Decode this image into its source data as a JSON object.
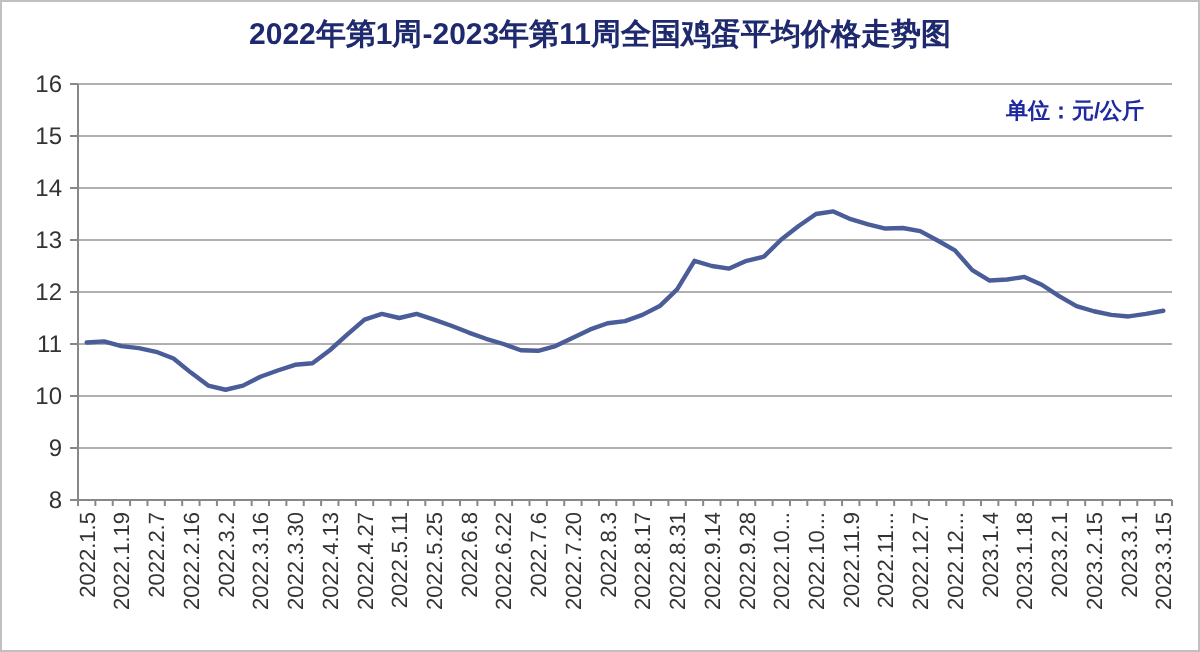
{
  "chart_data": {
    "type": "line",
    "title": "2022年第1周-2023年第11周全国鸡蛋平均价格走势图",
    "annotations": [
      "单位：元/公斤"
    ],
    "categories": [
      "2022.1.5",
      null,
      "2022.1.19",
      null,
      "2022.2.7",
      null,
      "2022.2.16",
      null,
      "2022.3.2",
      null,
      "2022.3.16",
      null,
      "2022.3.30",
      null,
      "2022.4.13",
      null,
      "2022.4.27",
      null,
      "2022.5.11",
      null,
      "2022.5.25",
      null,
      "2022.6.8",
      null,
      "2022.6.22",
      null,
      "2022.7.6",
      null,
      "2022.7.20",
      null,
      "2022.8.3",
      null,
      "2022.8.17",
      null,
      "2022.8.31",
      null,
      "2022.9.14",
      null,
      "2022.9.28",
      null,
      "2022.10...",
      null,
      "2022.10...",
      null,
      "2022.11.9",
      null,
      "2022.11...",
      null,
      "2022.12.7",
      null,
      "2022.12...",
      null,
      "2023.1.4",
      null,
      "2023.1.18",
      null,
      "2023.2.1",
      null,
      "2023.2.15",
      null,
      "2023.3.1",
      null,
      "2023.3.15"
    ],
    "series": [
      {
        "color": "#4a5d98",
        "values": [
          11.03,
          11.05,
          10.96,
          10.92,
          10.85,
          10.72,
          10.45,
          10.2,
          10.12,
          10.2,
          10.37,
          10.49,
          10.6,
          10.63,
          10.88,
          11.18,
          11.47,
          11.58,
          11.5,
          11.58,
          11.47,
          11.35,
          11.22,
          11.1,
          11.0,
          10.88,
          10.87,
          10.96,
          11.12,
          11.28,
          11.4,
          11.44,
          11.56,
          11.73,
          12.05,
          12.6,
          12.5,
          12.45,
          12.6,
          12.68,
          13.01,
          13.27,
          13.5,
          13.55,
          13.4,
          13.3,
          13.22,
          13.23,
          13.17,
          12.99,
          12.8,
          12.42,
          12.22,
          12.24,
          12.29,
          12.14,
          11.92,
          11.73,
          11.63,
          11.56,
          11.53,
          11.58,
          11.64
        ]
      }
    ],
    "ylim": [
      8,
      16
    ],
    "yticks": [
      8,
      9,
      10,
      11,
      12,
      13,
      14,
      15,
      16
    ],
    "grid": "y",
    "marker": "none",
    "line_style": "solid"
  }
}
